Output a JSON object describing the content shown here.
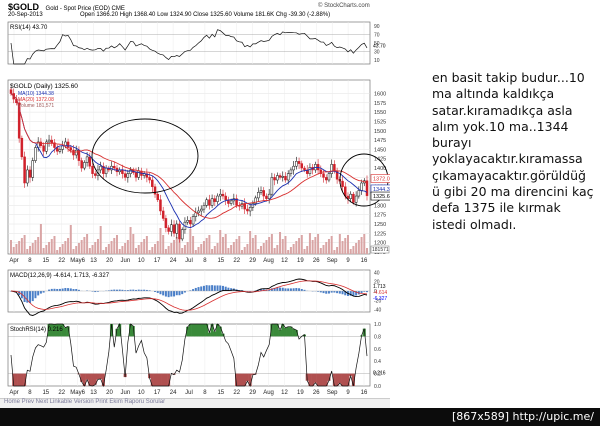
{
  "header": {
    "symbol": "$GOLD",
    "description": "Gold - Spot Price (EOD) CME",
    "source": "© StockCharts.com",
    "date": "20-Sep-2013",
    "quote": "Open 1366.20  High 1368.40  Low 1324.90  Close 1325.60  Volume 181.6K  Chg -39.30 (-2.88%)"
  },
  "panels": {
    "rsi_label": "RSI(14) 43.70",
    "price_label": "$GOLD (Daily) 1325.60",
    "ma10_label": "MA(10) 1344.38",
    "ma20_label": "MA(20) 1372.08",
    "volume_label": "Volume 181,571",
    "macd_label": "MACD(12,26,9) -4.614, 1.713, -6.327",
    "stochrsi_label": "StochRSI(14) 0.216",
    "volume_tag": "181571"
  },
  "toolbar": "Home  Prev  Next  Linkable Version  Print  Ekim  Raporu Sorular",
  "commentary": [
    "en basit takip budur...10",
    "ma altında kaldıkça",
    "satar.kıramadıkça asla",
    "alım yok.10 ma..1344",
    "burayı",
    "yoklayacaktır.kıramassa",
    "çıkamayacaktır.görüldüğ",
    "ü gibi 20 ma direncini kaç",
    "defa 1375 ile kırmak",
    "istedi olmadı."
  ],
  "watermark": "[867x589] http://upic.me/",
  "colors": {
    "up": "#111111",
    "down": "#d0202a",
    "ma10": "#1a2fb0",
    "ma20": "#d83030",
    "volume": "#d9a5a5",
    "macd_hist": "#4a7fc8",
    "osc_fill_hi": "#3a8a3a",
    "osc_fill_lo": "#b05050"
  },
  "chart_data": {
    "type": "candlestick",
    "x_labels": [
      "Apr",
      "8",
      "15",
      "22",
      "May6",
      "13",
      "20",
      "Jun",
      "10",
      "17",
      "24",
      "Jul",
      "8",
      "15",
      "22",
      "29",
      "Aug",
      "12",
      "19",
      "26",
      "Sep",
      "9",
      "16"
    ],
    "price_axis": [
      1175,
      1200,
      1225,
      1250,
      1275,
      1300,
      1325,
      1350,
      1375,
      1400,
      1425,
      1450,
      1475,
      1500,
      1525,
      1550,
      1575,
      1600
    ],
    "price_axis_tags": {
      "ma20": "1372.08",
      "ma10": "1344.38",
      "close": "1325.60"
    },
    "rsi_axis": [
      10,
      20,
      30,
      40,
      50,
      60,
      70,
      80,
      90
    ],
    "rsi_value_tag": "43.70",
    "macd_axis": [
      -40,
      -20,
      0,
      20,
      40
    ],
    "macd_tags": [
      "1.713",
      "-4.614",
      "-6.327"
    ],
    "stoch_axis": [
      0.0,
      0.2,
      0.4,
      0.6,
      0.8,
      1.0
    ],
    "stoch_value_tag": "0.216",
    "close": [
      1600,
      1585,
      1575,
      1480,
      1430,
      1360,
      1395,
      1375,
      1420,
      1455,
      1470,
      1460,
      1445,
      1470,
      1475,
      1468,
      1455,
      1445,
      1450,
      1460,
      1470,
      1455,
      1448,
      1435,
      1448,
      1420,
      1400,
      1415,
      1430,
      1405,
      1385,
      1380,
      1395,
      1405,
      1385,
      1400,
      1395,
      1405,
      1400,
      1390,
      1395,
      1385,
      1375,
      1385,
      1395,
      1388,
      1375,
      1392,
      1380,
      1385,
      1375,
      1368,
      1350,
      1330,
      1315,
      1285,
      1265,
      1240,
      1230,
      1248,
      1225,
      1250,
      1210,
      1235,
      1255,
      1260,
      1250,
      1270,
      1280,
      1285,
      1290,
      1300,
      1315,
      1300,
      1318,
      1310,
      1325,
      1330,
      1325,
      1315,
      1305,
      1312,
      1318,
      1300,
      1298,
      1305,
      1290,
      1285,
      1295,
      1305,
      1320,
      1335,
      1340,
      1325,
      1318,
      1330,
      1375,
      1368,
      1380,
      1375,
      1378,
      1368,
      1385,
      1395,
      1405,
      1418,
      1412,
      1400,
      1395,
      1385,
      1402,
      1395,
      1410,
      1395,
      1385,
      1375,
      1368,
      1385,
      1410,
      1392,
      1370,
      1365,
      1350,
      1325,
      1318,
      1330,
      1308,
      1325,
      1340,
      1360,
      1366,
      1326
    ]
  }
}
